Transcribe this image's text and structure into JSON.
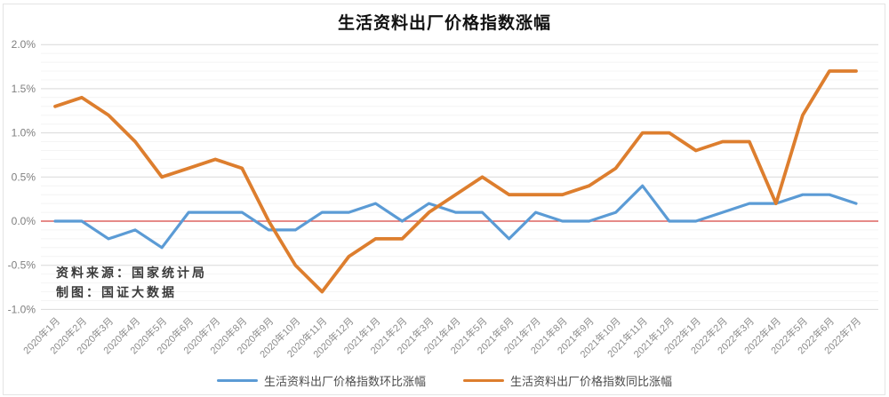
{
  "page": {
    "title": "生活资料出厂价格指数涨幅",
    "source_note": "资料来源：国家统计局",
    "credit_note": "制图：国证大数据"
  },
  "chart_data": {
    "type": "line",
    "title": "生活资料出厂价格指数涨幅",
    "xlabel": "",
    "ylabel": "",
    "unit": "%",
    "ylim": [
      -1.0,
      2.0
    ],
    "y_major_step": 0.5,
    "y_minor_step": 0.1,
    "y_tick_labels": [
      "2.0%",
      "1.5%",
      "1.0%",
      "0.5%",
      "0.0%",
      "-0.5%",
      "-1.0%"
    ],
    "grid": "horizontal major + minor, no vertical",
    "zero_line_color": "#d64541",
    "legend_position": "bottom",
    "categories": [
      "2020年1月",
      "2020年2月",
      "2020年3月",
      "2020年4月",
      "2020年5月",
      "2020年6月",
      "2020年7月",
      "2020年8月",
      "2020年9月",
      "2020年10月",
      "2020年11月",
      "2020年12月",
      "2021年1月",
      "2021年2月",
      "2021年3月",
      "2021年4月",
      "2021年5月",
      "2021年6月",
      "2021年7月",
      "2021年8月",
      "2021年9月",
      "2021年10月",
      "2021年11月",
      "2021年12月",
      "2022年1月",
      "2022年2月",
      "2022年3月",
      "2022年4月",
      "2022年5月",
      "2022年6月",
      "2022年7月"
    ],
    "series": [
      {
        "id": "mom",
        "name": "生活资料出厂价格指数环比涨幅",
        "color": "#5b9bd5",
        "values": [
          0.0,
          0.0,
          -0.2,
          -0.1,
          -0.3,
          0.1,
          0.1,
          0.1,
          -0.1,
          -0.1,
          0.1,
          0.1,
          0.2,
          0.0,
          0.2,
          0.1,
          0.1,
          -0.2,
          0.1,
          0.0,
          0.0,
          0.1,
          0.4,
          0.0,
          0.0,
          0.1,
          0.2,
          0.2,
          0.3,
          0.3,
          0.2
        ]
      },
      {
        "id": "yoy",
        "name": "生活资料出厂价格指数同比涨幅",
        "color": "#dd7e2e",
        "values": [
          1.3,
          1.4,
          1.2,
          0.9,
          0.5,
          0.6,
          0.7,
          0.6,
          0.0,
          -0.5,
          -0.8,
          -0.4,
          -0.2,
          -0.2,
          0.1,
          0.3,
          0.5,
          0.3,
          0.3,
          0.3,
          0.4,
          0.6,
          1.0,
          1.0,
          0.8,
          0.9,
          0.9,
          0.2,
          1.2,
          1.7,
          1.7
        ]
      }
    ]
  }
}
